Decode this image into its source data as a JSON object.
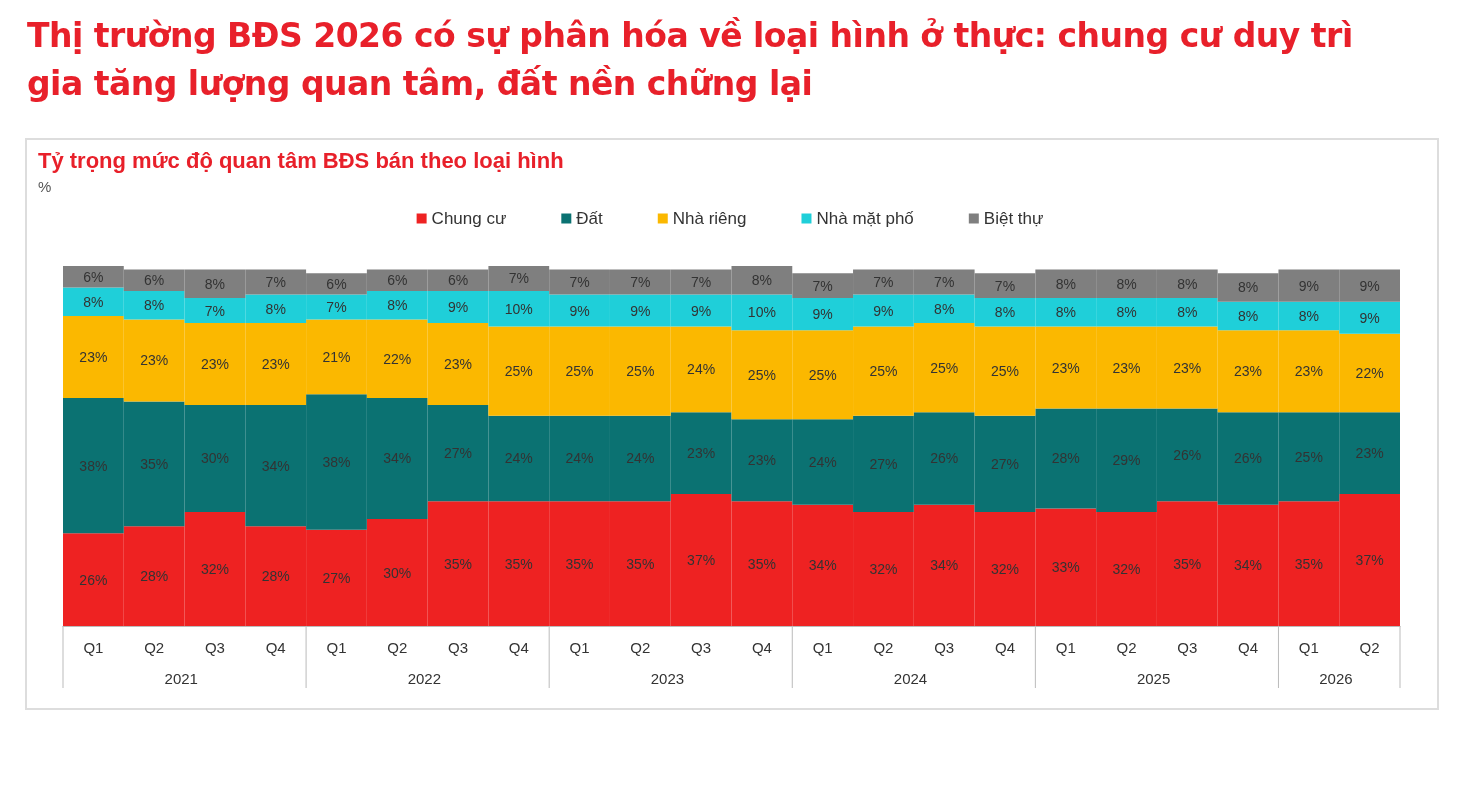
{
  "chart_data": {
    "type": "bar",
    "stacked": true,
    "legend": "top",
    "title": "Thị trường BĐS 2026 có sự phân hóa về loại hình ở thực: chung cư duy trì gia tăng lượng quan tâm, đất nền chững lại",
    "subtitle": "Tỷ trọng mức độ quan tâm BĐS bán theo loại hình",
    "ylabel": "%",
    "categories": [
      "Q1",
      "Q2",
      "Q3",
      "Q4",
      "Q1",
      "Q2",
      "Q3",
      "Q4",
      "Q1",
      "Q2",
      "Q3",
      "Q4",
      "Q1",
      "Q2",
      "Q3",
      "Q4",
      "Q1",
      "Q2",
      "Q3",
      "Q4",
      "Q1",
      "Q2"
    ],
    "annotations": [
      "2021",
      "2022",
      "2023",
      "2024",
      "2025",
      "2026"
    ],
    "series": [
      {
        "name": "Chung cư",
        "color": "#ee2222",
        "values": [
          26,
          28,
          32,
          28,
          27,
          30,
          35,
          35,
          35,
          35,
          37,
          35,
          34,
          32,
          34,
          32,
          33,
          32,
          35,
          34,
          35,
          37
        ],
        "value_labels": [
          "26%",
          "28%",
          "32%",
          "28%",
          "27%",
          "30%",
          "35%",
          "35%",
          "35%",
          "35%",
          "37%",
          "35%",
          "34%",
          "32%",
          "34%",
          "32%",
          "33%",
          "32%",
          "35%",
          "34%",
          "35%",
          "37%"
        ]
      },
      {
        "name": "Đất",
        "color": "#0b7272",
        "values": [
          38,
          35,
          30,
          34,
          38,
          34,
          27,
          24,
          24,
          24,
          23,
          23,
          24,
          27,
          26,
          27,
          28,
          29,
          26,
          26,
          25,
          23
        ],
        "value_labels": [
          "38%",
          "35%",
          "30%",
          "34%",
          "38%",
          "34%",
          "27%",
          "24%",
          "24%",
          "24%",
          "23%",
          "23%",
          "24%",
          "27%",
          "26%",
          "27%",
          "28%",
          "29%",
          "26%",
          "26%",
          "25%",
          "23%"
        ]
      },
      {
        "name": "Nhà riêng",
        "color": "#fbb800",
        "values": [
          23,
          23,
          23,
          23,
          21,
          22,
          23,
          25,
          25,
          25,
          24,
          25,
          25,
          25,
          25,
          25,
          23,
          23,
          23,
          23,
          23,
          22
        ],
        "value_labels": [
          "23%",
          "23%",
          "23%",
          "23%",
          "21%",
          "22%",
          "23%",
          "25%",
          "25%",
          "25%",
          "24%",
          "25%",
          "25%",
          "25%",
          "25%",
          "25%",
          "23%",
          "23%",
          "23%",
          "23%",
          "23%",
          "22%"
        ]
      },
      {
        "name": "Nhà mặt phố",
        "color": "#1fcfd9",
        "values": [
          8,
          8,
          7,
          8,
          7,
          8,
          9,
          10,
          9,
          9,
          9,
          10,
          9,
          9,
          8,
          8,
          8,
          8,
          8,
          8,
          8,
          9
        ],
        "value_labels": [
          "8%",
          "8%",
          "7%",
          "8%",
          "7%",
          "8%",
          "9%",
          "10%",
          "9%",
          "9%",
          "9%",
          "10%",
          "9%",
          "9%",
          "8%",
          "8%",
          "8%",
          "8%",
          "8%",
          "8%",
          "8%",
          "9%"
        ]
      },
      {
        "name": "Biệt thự",
        "color": "#7f7f7f",
        "values": [
          6,
          6,
          8,
          7,
          6,
          6,
          6,
          7,
          7,
          7,
          7,
          8,
          7,
          7,
          7,
          7,
          8,
          8,
          8,
          8,
          9,
          9
        ],
        "value_labels": [
          "6%",
          "6%",
          "8%",
          "7%",
          "6%",
          "6%",
          "6%",
          "7%",
          "7%",
          "7%",
          "7%",
          "8%",
          "7%",
          "7%",
          "7%",
          "7%",
          "8%",
          "8%",
          "8%",
          "8%",
          "9%",
          "9%"
        ]
      }
    ]
  }
}
